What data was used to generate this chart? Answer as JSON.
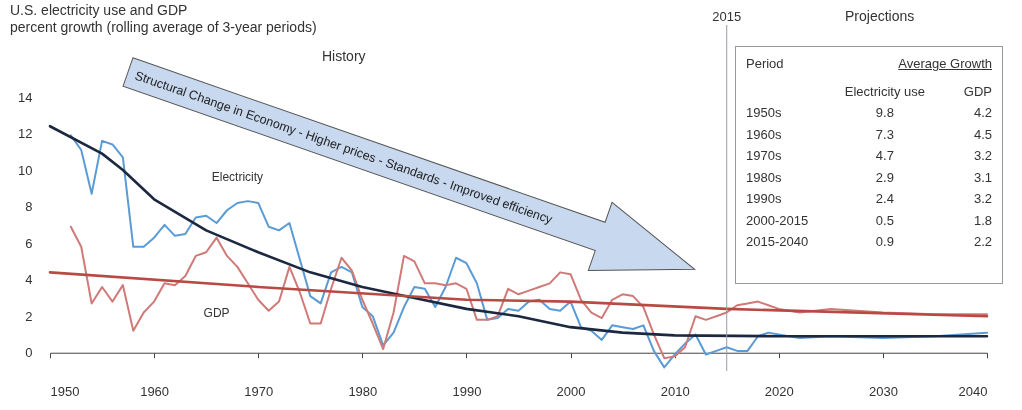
{
  "chart_data": {
    "type": "line",
    "title": "U.S. electricity use and GDP",
    "subtitle": "percent growth (rolling average of 3-year periods)",
    "xlim": [
      1950,
      2040
    ],
    "xticks": [
      1950,
      1960,
      1970,
      1980,
      1990,
      2000,
      2010,
      2020,
      2030,
      2040
    ],
    "ylim": [
      -1,
      14
    ],
    "yticks": [
      0,
      2,
      4,
      6,
      8,
      10,
      12,
      14
    ],
    "series": [
      {
        "name": "Electricity",
        "color": "#5b9bd5",
        "x": [
          1952,
          1953,
          1954,
          1955,
          1956,
          1957,
          1958,
          1959,
          1960,
          1961,
          1962,
          1963,
          1964,
          1965,
          1966,
          1967,
          1968,
          1969,
          1970,
          1971,
          1972,
          1973,
          1974,
          1975,
          1976,
          1977,
          1978,
          1979,
          1980,
          1981,
          1982,
          1983,
          1984,
          1985,
          1986,
          1987,
          1988,
          1989,
          1990,
          1991,
          1992,
          1993,
          1994,
          1995,
          1996,
          1997,
          1998,
          1999,
          2000,
          2001,
          2002,
          2003,
          2004,
          2005,
          2006,
          2007,
          2008,
          2009,
          2010,
          2011,
          2012,
          2013,
          2014,
          2015,
          2016,
          2017,
          2018,
          2019,
          2020,
          2022,
          2025,
          2030,
          2035,
          2040
        ],
        "values": [
          11.9,
          11.1,
          8.7,
          11.6,
          11.4,
          10.7,
          5.8,
          5.8,
          6.3,
          7.0,
          6.4,
          6.5,
          7.4,
          7.5,
          7.1,
          7.8,
          8.2,
          8.3,
          8.2,
          6.9,
          6.7,
          7.1,
          5.1,
          3.1,
          2.7,
          4.4,
          4.7,
          4.4,
          2.5,
          2.0,
          0.4,
          1.1,
          2.5,
          3.6,
          3.5,
          2.5,
          3.6,
          5.2,
          4.9,
          3.8,
          1.8,
          1.9,
          2.4,
          2.3,
          2.8,
          2.9,
          2.4,
          2.3,
          2.8,
          1.4,
          1.2,
          0.7,
          1.5,
          1.4,
          1.3,
          1.5,
          0.1,
          -0.8,
          -0.1,
          0.5,
          1.0,
          -0.1,
          0.1,
          0.3,
          0.1,
          0.1,
          0.9,
          1.1,
          1.0,
          0.8,
          0.9,
          0.8,
          0.9,
          1.1
        ]
      },
      {
        "name": "GDP",
        "color": "#d07a78",
        "x": [
          1952,
          1953,
          1954,
          1955,
          1956,
          1957,
          1958,
          1959,
          1960,
          1961,
          1962,
          1963,
          1964,
          1965,
          1966,
          1967,
          1968,
          1969,
          1970,
          1971,
          1972,
          1973,
          1974,
          1975,
          1976,
          1977,
          1978,
          1979,
          1980,
          1981,
          1982,
          1983,
          1984,
          1985,
          1986,
          1987,
          1988,
          1989,
          1990,
          1991,
          1992,
          1993,
          1994,
          1995,
          1996,
          1997,
          1998,
          1999,
          2000,
          2001,
          2002,
          2003,
          2004,
          2005,
          2006,
          2007,
          2008,
          2009,
          2010,
          2011,
          2012,
          2013,
          2014,
          2015,
          2016,
          2017,
          2018,
          2019,
          2020,
          2022,
          2025,
          2030,
          2035,
          2040
        ],
        "values": [
          6.9,
          5.8,
          2.7,
          3.6,
          2.8,
          3.7,
          1.2,
          2.2,
          2.8,
          3.8,
          3.7,
          4.2,
          5.3,
          5.5,
          6.3,
          5.3,
          4.7,
          3.8,
          2.9,
          2.3,
          2.8,
          4.7,
          3.3,
          1.6,
          1.6,
          3.5,
          5.2,
          4.5,
          2.9,
          1.6,
          0.2,
          2.2,
          5.3,
          5.0,
          3.8,
          3.8,
          3.7,
          3.8,
          3.5,
          1.8,
          1.8,
          2.0,
          3.5,
          3.2,
          3.4,
          3.6,
          3.8,
          4.4,
          4.3,
          2.9,
          2.2,
          1.9,
          2.9,
          3.2,
          3.1,
          2.5,
          1.0,
          -0.3,
          -0.2,
          0.3,
          2.0,
          1.8,
          2.0,
          2.2,
          2.6,
          2.7,
          2.8,
          2.6,
          2.4,
          2.2,
          2.4,
          2.2,
          2.1,
          2.1
        ]
      },
      {
        "color": "#1c2740",
        "x": [
          1950,
          1955,
          1957,
          1960,
          1965,
          1970,
          1975,
          1980,
          1985,
          1990,
          1995,
          2000,
          2005,
          2010,
          2020,
          2040
        ],
        "values": [
          12.4,
          10.9,
          10.0,
          8.4,
          6.7,
          5.5,
          4.4,
          3.6,
          3.0,
          2.4,
          2.0,
          1.4,
          1.1,
          0.95,
          0.9,
          0.9
        ]
      },
      {
        "color": "#b84a44",
        "x": [
          1950,
          1970,
          1990,
          2000,
          2015,
          2040
        ],
        "values": [
          4.4,
          3.6,
          2.9,
          2.8,
          2.4,
          2.0
        ]
      }
    ],
    "ref_lines": [
      {
        "axis": "x",
        "value": 2015,
        "label": "2015",
        "color": "#9a9aa8"
      }
    ],
    "annotations": [
      "History",
      "Projections",
      "Structural Change in Economy - Higher prices - Standards - Improved efficiency",
      "Period",
      "Average Growth",
      "Electricity use",
      "GDP",
      "1950s",
      "9.8",
      "4.2",
      "1960s",
      "7.3",
      "4.5",
      "1970s",
      "4.7",
      "3.2",
      "1980s",
      "2.9",
      "3.1",
      "1990s",
      "2.4",
      "3.2",
      "2000-2015",
      "0.5",
      "1.8",
      "2015-2040",
      "0.9",
      "2.2"
    ]
  }
}
